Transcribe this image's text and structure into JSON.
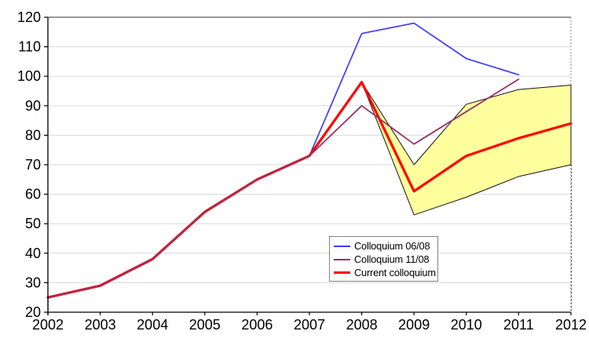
{
  "chart_data": {
    "type": "line",
    "title": "",
    "xlabel": "",
    "ylabel": "",
    "x_ticks": [
      2002,
      2003,
      2004,
      2005,
      2006,
      2007,
      2008,
      2009,
      2010,
      2011,
      2012
    ],
    "xlim": [
      2002,
      2012
    ],
    "ylim": [
      20,
      120
    ],
    "ytick_step": 10,
    "grid": true,
    "legend_position": "inside-lower-middle",
    "series": [
      {
        "name": "Colloquium 06/08",
        "color": "#3c3cff",
        "width": 1.7,
        "x": [
          2002,
          2003,
          2004,
          2005,
          2006,
          2007,
          2008,
          2009,
          2010,
          2011
        ],
        "values": [
          25,
          29,
          38,
          54,
          65,
          73,
          114.5,
          118,
          106,
          100.5
        ]
      },
      {
        "name": "Colloquium 11/08",
        "color": "#993366",
        "width": 1.8,
        "x": [
          2002,
          2003,
          2004,
          2005,
          2006,
          2007,
          2008,
          2009,
          2010,
          2011
        ],
        "values": [
          25,
          29,
          38,
          54,
          65,
          73,
          90,
          77,
          88,
          99
        ]
      },
      {
        "name": "Current colloquium",
        "color": "#ff0000",
        "width": 3.2,
        "x": [
          2002,
          2003,
          2004,
          2005,
          2006,
          2007,
          2008,
          2009,
          2010,
          2011,
          2012
        ],
        "values": [
          25,
          29,
          38,
          54,
          65,
          73,
          98,
          61,
          73,
          79,
          84
        ]
      }
    ],
    "uncertainty_band": {
      "x": [
        2008,
        2009,
        2010,
        2011,
        2012
      ],
      "upper": [
        98,
        70,
        90.5,
        95.5,
        97
      ],
      "lower": [
        98,
        53,
        59,
        66,
        70
      ],
      "fill": "#ffff9e",
      "stroke": "#141414"
    },
    "drop_lines": [
      {
        "x": 2002,
        "from": 25,
        "to": 20
      },
      {
        "x": 2012,
        "from": 70,
        "to": 20
      }
    ]
  },
  "colors": {
    "grid": "#d9d9d9",
    "axis": "#000000",
    "top_border": "#595959",
    "right_border": "#8c8c8c",
    "background": "#ffffff"
  }
}
